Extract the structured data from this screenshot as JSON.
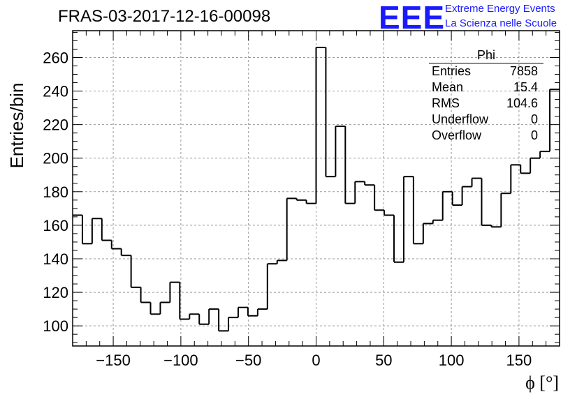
{
  "header": {
    "title": "FRAS-03-2017-12-16-00098",
    "logo_text": "EEE",
    "logo_line1": "Extreme Energy Events",
    "logo_line2": "La Scienza nelle Scuole"
  },
  "stats_box": {
    "title": "Phi",
    "rows": [
      {
        "label": "Entries",
        "value": "7858"
      },
      {
        "label": "Mean",
        "value": "15.4"
      },
      {
        "label": "RMS",
        "value": "104.6"
      },
      {
        "label": "Underflow",
        "value": "0"
      },
      {
        "label": "Overflow",
        "value": "0"
      }
    ]
  },
  "colors": {
    "line": "#000000",
    "grid": "#999999",
    "logo": "#1a1aff"
  },
  "chart_data": {
    "type": "histogram",
    "xlabel": "ϕ [°]",
    "ylabel": "Entries/bin",
    "xlim": [
      -180,
      180
    ],
    "ylim": [
      88,
      276
    ],
    "bin_width": 7.2,
    "grid": true,
    "x_ticks": [
      -150,
      -100,
      -50,
      0,
      50,
      100,
      150
    ],
    "x_tick_labels": [
      "−150",
      "−100",
      "−50",
      "0",
      "50",
      "100",
      "150"
    ],
    "y_ticks": [
      100,
      120,
      140,
      160,
      180,
      200,
      220,
      240,
      260
    ],
    "y_tick_labels": [
      "100",
      "120",
      "140",
      "160",
      "180",
      "200",
      "220",
      "240",
      "260"
    ],
    "bin_edges": [
      -180,
      -172.8,
      -165.6,
      -158.4,
      -151.2,
      -144,
      -136.8,
      -129.6,
      -122.4,
      -115.2,
      -108,
      -100.8,
      -93.6,
      -86.4,
      -79.2,
      -72,
      -64.8,
      -57.6,
      -50.4,
      -43.2,
      -36,
      -28.8,
      -21.6,
      -14.4,
      -7.2,
      0,
      7.2,
      14.4,
      21.6,
      28.8,
      36,
      43.2,
      50.4,
      57.6,
      64.8,
      72,
      79.2,
      86.4,
      93.6,
      100.8,
      108,
      115.2,
      122.4,
      129.6,
      136.8,
      144,
      151.2,
      158.4,
      165.6,
      172.8,
      180
    ],
    "values": [
      166,
      149,
      164,
      151,
      146,
      142,
      123,
      114,
      107,
      114,
      126,
      104,
      107,
      101,
      110,
      97,
      105,
      111,
      106,
      110,
      137,
      139,
      176,
      175,
      173,
      266,
      189,
      219,
      173,
      186,
      184,
      169,
      166,
      138,
      189,
      149,
      161,
      163,
      180,
      172,
      183,
      188,
      160,
      159,
      179,
      196,
      191,
      200,
      204,
      241
    ]
  }
}
